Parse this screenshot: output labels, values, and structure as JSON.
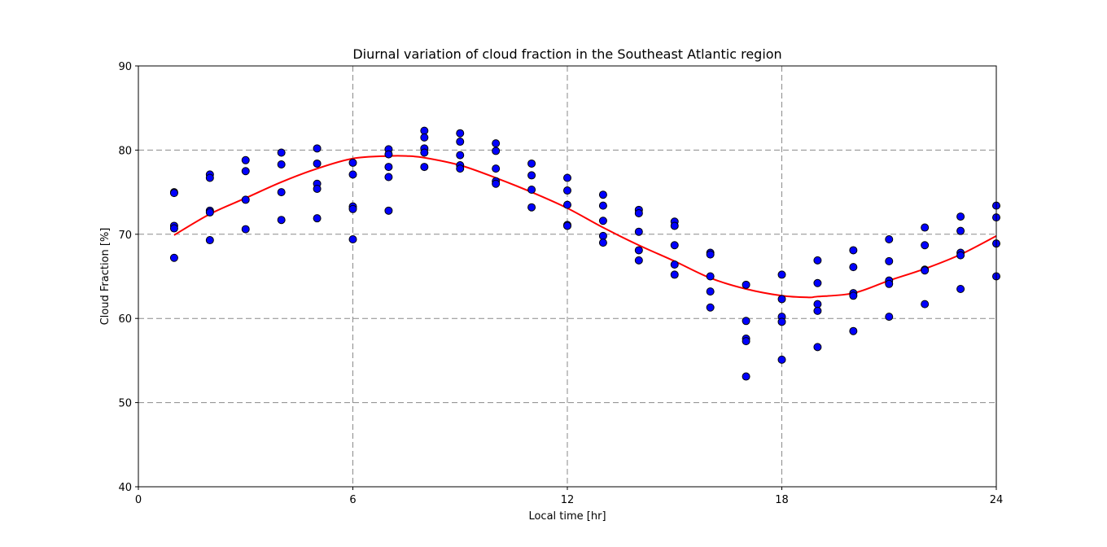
{
  "chart_data": {
    "type": "scatter",
    "title": "Diurnal variation of cloud fraction in the Southeast Atlantic region",
    "xlabel": "Local time [hr]",
    "ylabel": "Cloud Fraction [%]",
    "xlim": [
      0,
      24
    ],
    "ylim": [
      40,
      90
    ],
    "xticks": [
      "0",
      "6",
      "12",
      "18",
      "24"
    ],
    "yticks": [
      "40",
      "50",
      "60",
      "70",
      "80",
      "90"
    ],
    "grid": true,
    "grid_style": "dashed",
    "colors": {
      "points": "#0000ff",
      "point_edge": "#000000",
      "fit": "#ff0000",
      "grid": "#8a8a8a"
    },
    "series": [
      {
        "type": "scatter",
        "points": [
          [
            1,
            75.0
          ],
          [
            1,
            74.9
          ],
          [
            1,
            71.0
          ],
          [
            1,
            70.7
          ],
          [
            1,
            67.2
          ],
          [
            2,
            77.1
          ],
          [
            2,
            76.7
          ],
          [
            2,
            72.8
          ],
          [
            2,
            72.6
          ],
          [
            2,
            69.3
          ],
          [
            3,
            78.8
          ],
          [
            3,
            77.5
          ],
          [
            3,
            74.1
          ],
          [
            3,
            70.6
          ],
          [
            4,
            79.7
          ],
          [
            4,
            78.3
          ],
          [
            4,
            75.0
          ],
          [
            4,
            71.7
          ],
          [
            5,
            80.2
          ],
          [
            5,
            78.4
          ],
          [
            5,
            76.0
          ],
          [
            5,
            75.4
          ],
          [
            5,
            71.9
          ],
          [
            6,
            78.5
          ],
          [
            6,
            77.1
          ],
          [
            6,
            73.3
          ],
          [
            6,
            73.0
          ],
          [
            6,
            69.4
          ],
          [
            7,
            80.1
          ],
          [
            7,
            79.5
          ],
          [
            7,
            78.0
          ],
          [
            7,
            76.8
          ],
          [
            7,
            72.8
          ],
          [
            8,
            82.3
          ],
          [
            8,
            81.5
          ],
          [
            8,
            80.2
          ],
          [
            8,
            79.7
          ],
          [
            8,
            78.0
          ],
          [
            9,
            82.0
          ],
          [
            9,
            81.0
          ],
          [
            9,
            79.4
          ],
          [
            9,
            78.2
          ],
          [
            9,
            77.8
          ],
          [
            10,
            80.8
          ],
          [
            10,
            79.9
          ],
          [
            10,
            77.8
          ],
          [
            10,
            76.3
          ],
          [
            10,
            76.0
          ],
          [
            11,
            78.4
          ],
          [
            11,
            77.0
          ],
          [
            11,
            75.3
          ],
          [
            11,
            73.2
          ],
          [
            12,
            76.7
          ],
          [
            12,
            75.2
          ],
          [
            12,
            73.5
          ],
          [
            12,
            71.1
          ],
          [
            12,
            71.0
          ],
          [
            13,
            74.7
          ],
          [
            13,
            73.4
          ],
          [
            13,
            71.6
          ],
          [
            13,
            69.8
          ],
          [
            13,
            69.0
          ],
          [
            14,
            72.9
          ],
          [
            14,
            72.5
          ],
          [
            14,
            70.3
          ],
          [
            14,
            68.1
          ],
          [
            14,
            66.9
          ],
          [
            15,
            71.5
          ],
          [
            15,
            71.0
          ],
          [
            15,
            68.7
          ],
          [
            15,
            66.4
          ],
          [
            15,
            65.2
          ],
          [
            16,
            67.8
          ],
          [
            16,
            67.6
          ],
          [
            16,
            65.0
          ],
          [
            16,
            63.2
          ],
          [
            16,
            61.3
          ],
          [
            17,
            64.0
          ],
          [
            17,
            59.7
          ],
          [
            17,
            57.6
          ],
          [
            17,
            57.3
          ],
          [
            17,
            53.1
          ],
          [
            18,
            65.2
          ],
          [
            18,
            62.3
          ],
          [
            18,
            60.2
          ],
          [
            18,
            59.6
          ],
          [
            18,
            55.1
          ],
          [
            19,
            66.9
          ],
          [
            19,
            64.2
          ],
          [
            19,
            61.7
          ],
          [
            19,
            60.9
          ],
          [
            19,
            56.6
          ],
          [
            20,
            68.1
          ],
          [
            20,
            66.1
          ],
          [
            20,
            63.0
          ],
          [
            20,
            62.7
          ],
          [
            20,
            58.5
          ],
          [
            21,
            69.4
          ],
          [
            21,
            66.8
          ],
          [
            21,
            64.5
          ],
          [
            21,
            64.1
          ],
          [
            21,
            60.2
          ],
          [
            22,
            70.8
          ],
          [
            22,
            68.7
          ],
          [
            22,
            65.8
          ],
          [
            22,
            65.7
          ],
          [
            22,
            61.7
          ],
          [
            23,
            72.1
          ],
          [
            23,
            70.4
          ],
          [
            23,
            67.8
          ],
          [
            23,
            67.5
          ],
          [
            23,
            63.5
          ],
          [
            24,
            73.4
          ],
          [
            24,
            72.0
          ],
          [
            24,
            68.9
          ],
          [
            24,
            65.0
          ]
        ]
      },
      {
        "type": "line",
        "x": [
          1,
          2,
          3,
          4,
          5,
          6,
          7,
          7.5,
          8,
          9,
          10,
          11,
          12,
          13,
          14,
          15,
          16,
          17,
          18,
          18.75,
          19,
          20,
          21,
          22,
          23,
          24
        ],
        "y": [
          69.9,
          72.4,
          74.3,
          76.2,
          77.8,
          79.0,
          79.3,
          79.3,
          79.1,
          78.2,
          76.7,
          75.0,
          73.1,
          70.8,
          68.7,
          66.8,
          64.8,
          63.5,
          62.7,
          62.5,
          62.6,
          63.0,
          64.5,
          65.9,
          67.6,
          69.8
        ]
      }
    ]
  }
}
